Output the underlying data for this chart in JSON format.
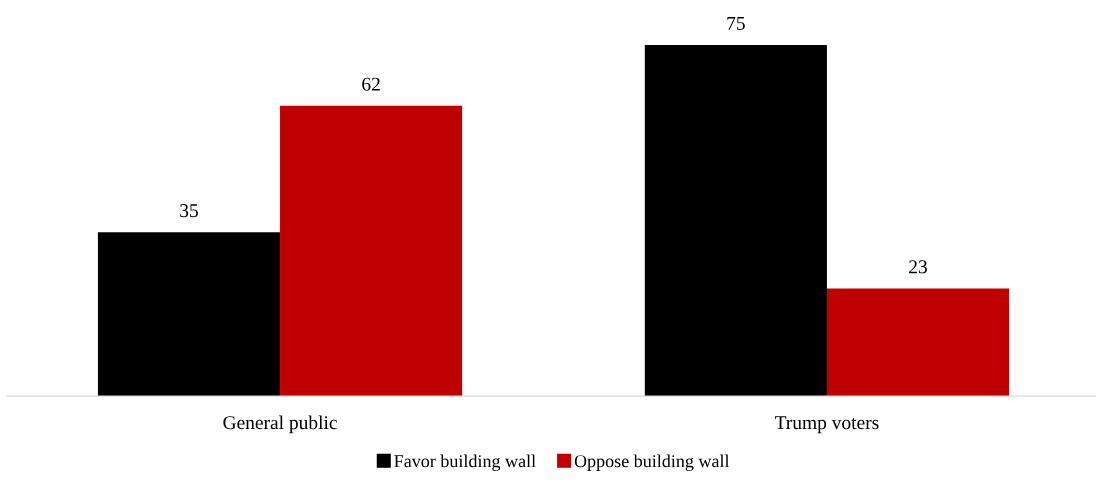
{
  "chart_data": {
    "type": "bar",
    "categories": [
      "General public",
      "Trump voters"
    ],
    "series": [
      {
        "name": "Favor building wall",
        "color": "#000000",
        "values": [
          35,
          75
        ]
      },
      {
        "name": "Oppose building wall",
        "color": "#c00000",
        "values": [
          62,
          23
        ]
      }
    ],
    "data_labels": true,
    "grid": false,
    "legend": "bottom"
  }
}
